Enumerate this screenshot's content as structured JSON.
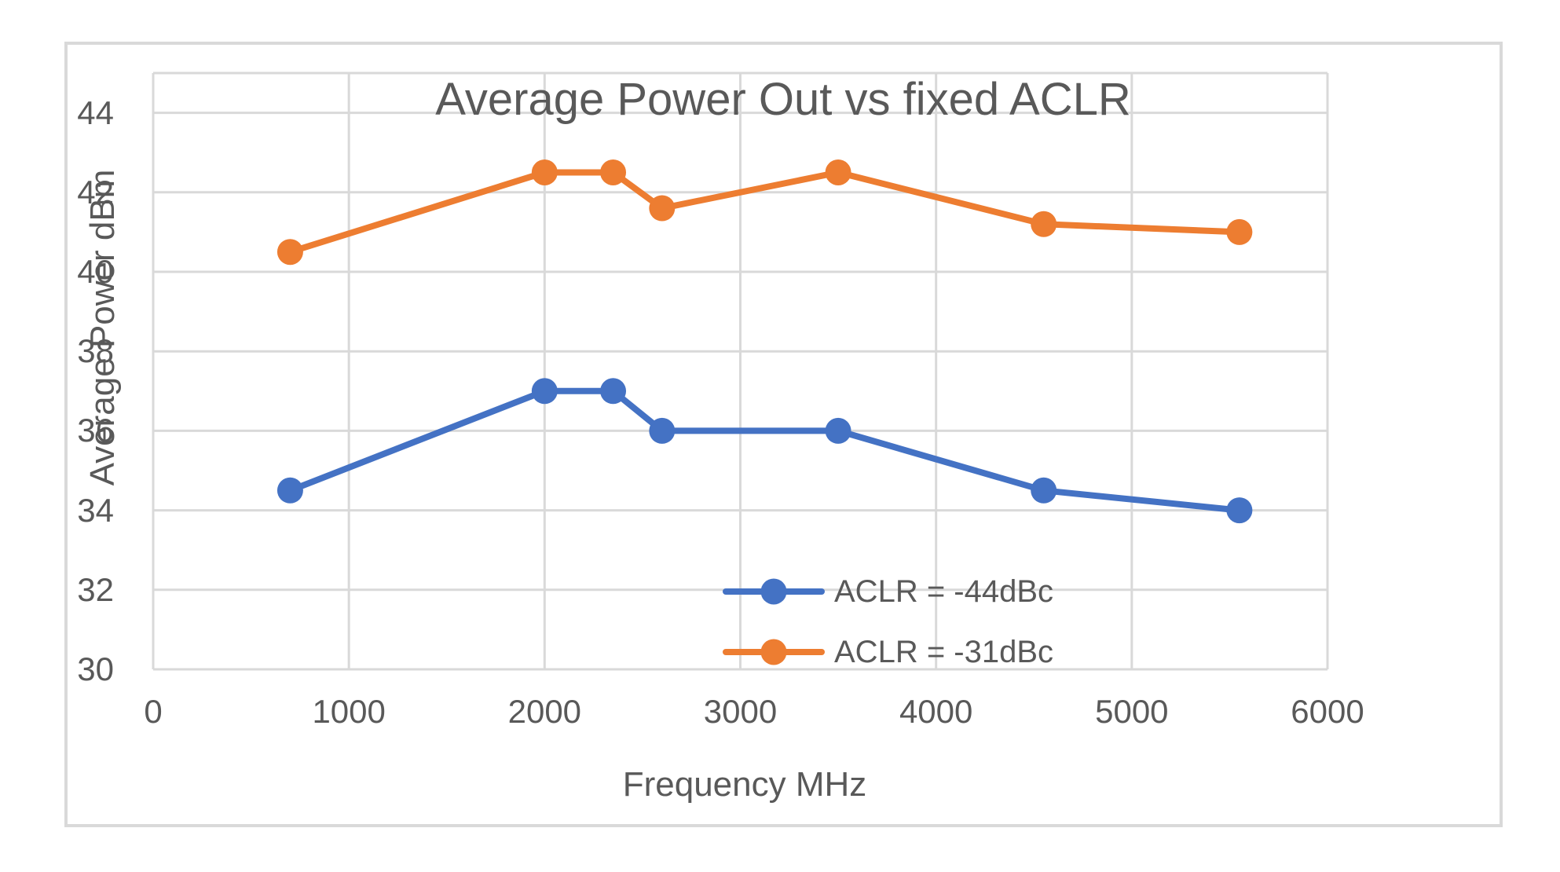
{
  "chart_data": {
    "type": "line",
    "title": "Average Power Out vs fixed ACLR",
    "xlabel": "Frequency MHz",
    "ylabel": "Average Power dBm",
    "x": [
      700,
      2000,
      2350,
      2600,
      3500,
      4550,
      5550
    ],
    "series": [
      {
        "name": "ACLR = -44dBc",
        "color": "#4472C4",
        "values": [
          34.5,
          37,
          37,
          36,
          36,
          34.5,
          34
        ]
      },
      {
        "name": "ACLR = -31dBc",
        "color": "#ED7D31",
        "values": [
          40.5,
          42.5,
          42.5,
          41.6,
          42.5,
          41.2,
          41
        ]
      }
    ],
    "xlim": [
      0,
      6000
    ],
    "ylim": [
      30,
      45
    ],
    "x_ticks": [
      0,
      1000,
      2000,
      3000,
      4000,
      5000,
      6000
    ],
    "y_ticks": [
      30,
      32,
      34,
      36,
      38,
      40,
      42,
      44
    ],
    "grid": true,
    "legend_position": "inside-bottom-center",
    "marker": "circle",
    "colors": {
      "gridline": "#D9D9D9",
      "frame_border": "#D9D9D9",
      "text": "#595959",
      "background": "#FFFFFF"
    }
  }
}
